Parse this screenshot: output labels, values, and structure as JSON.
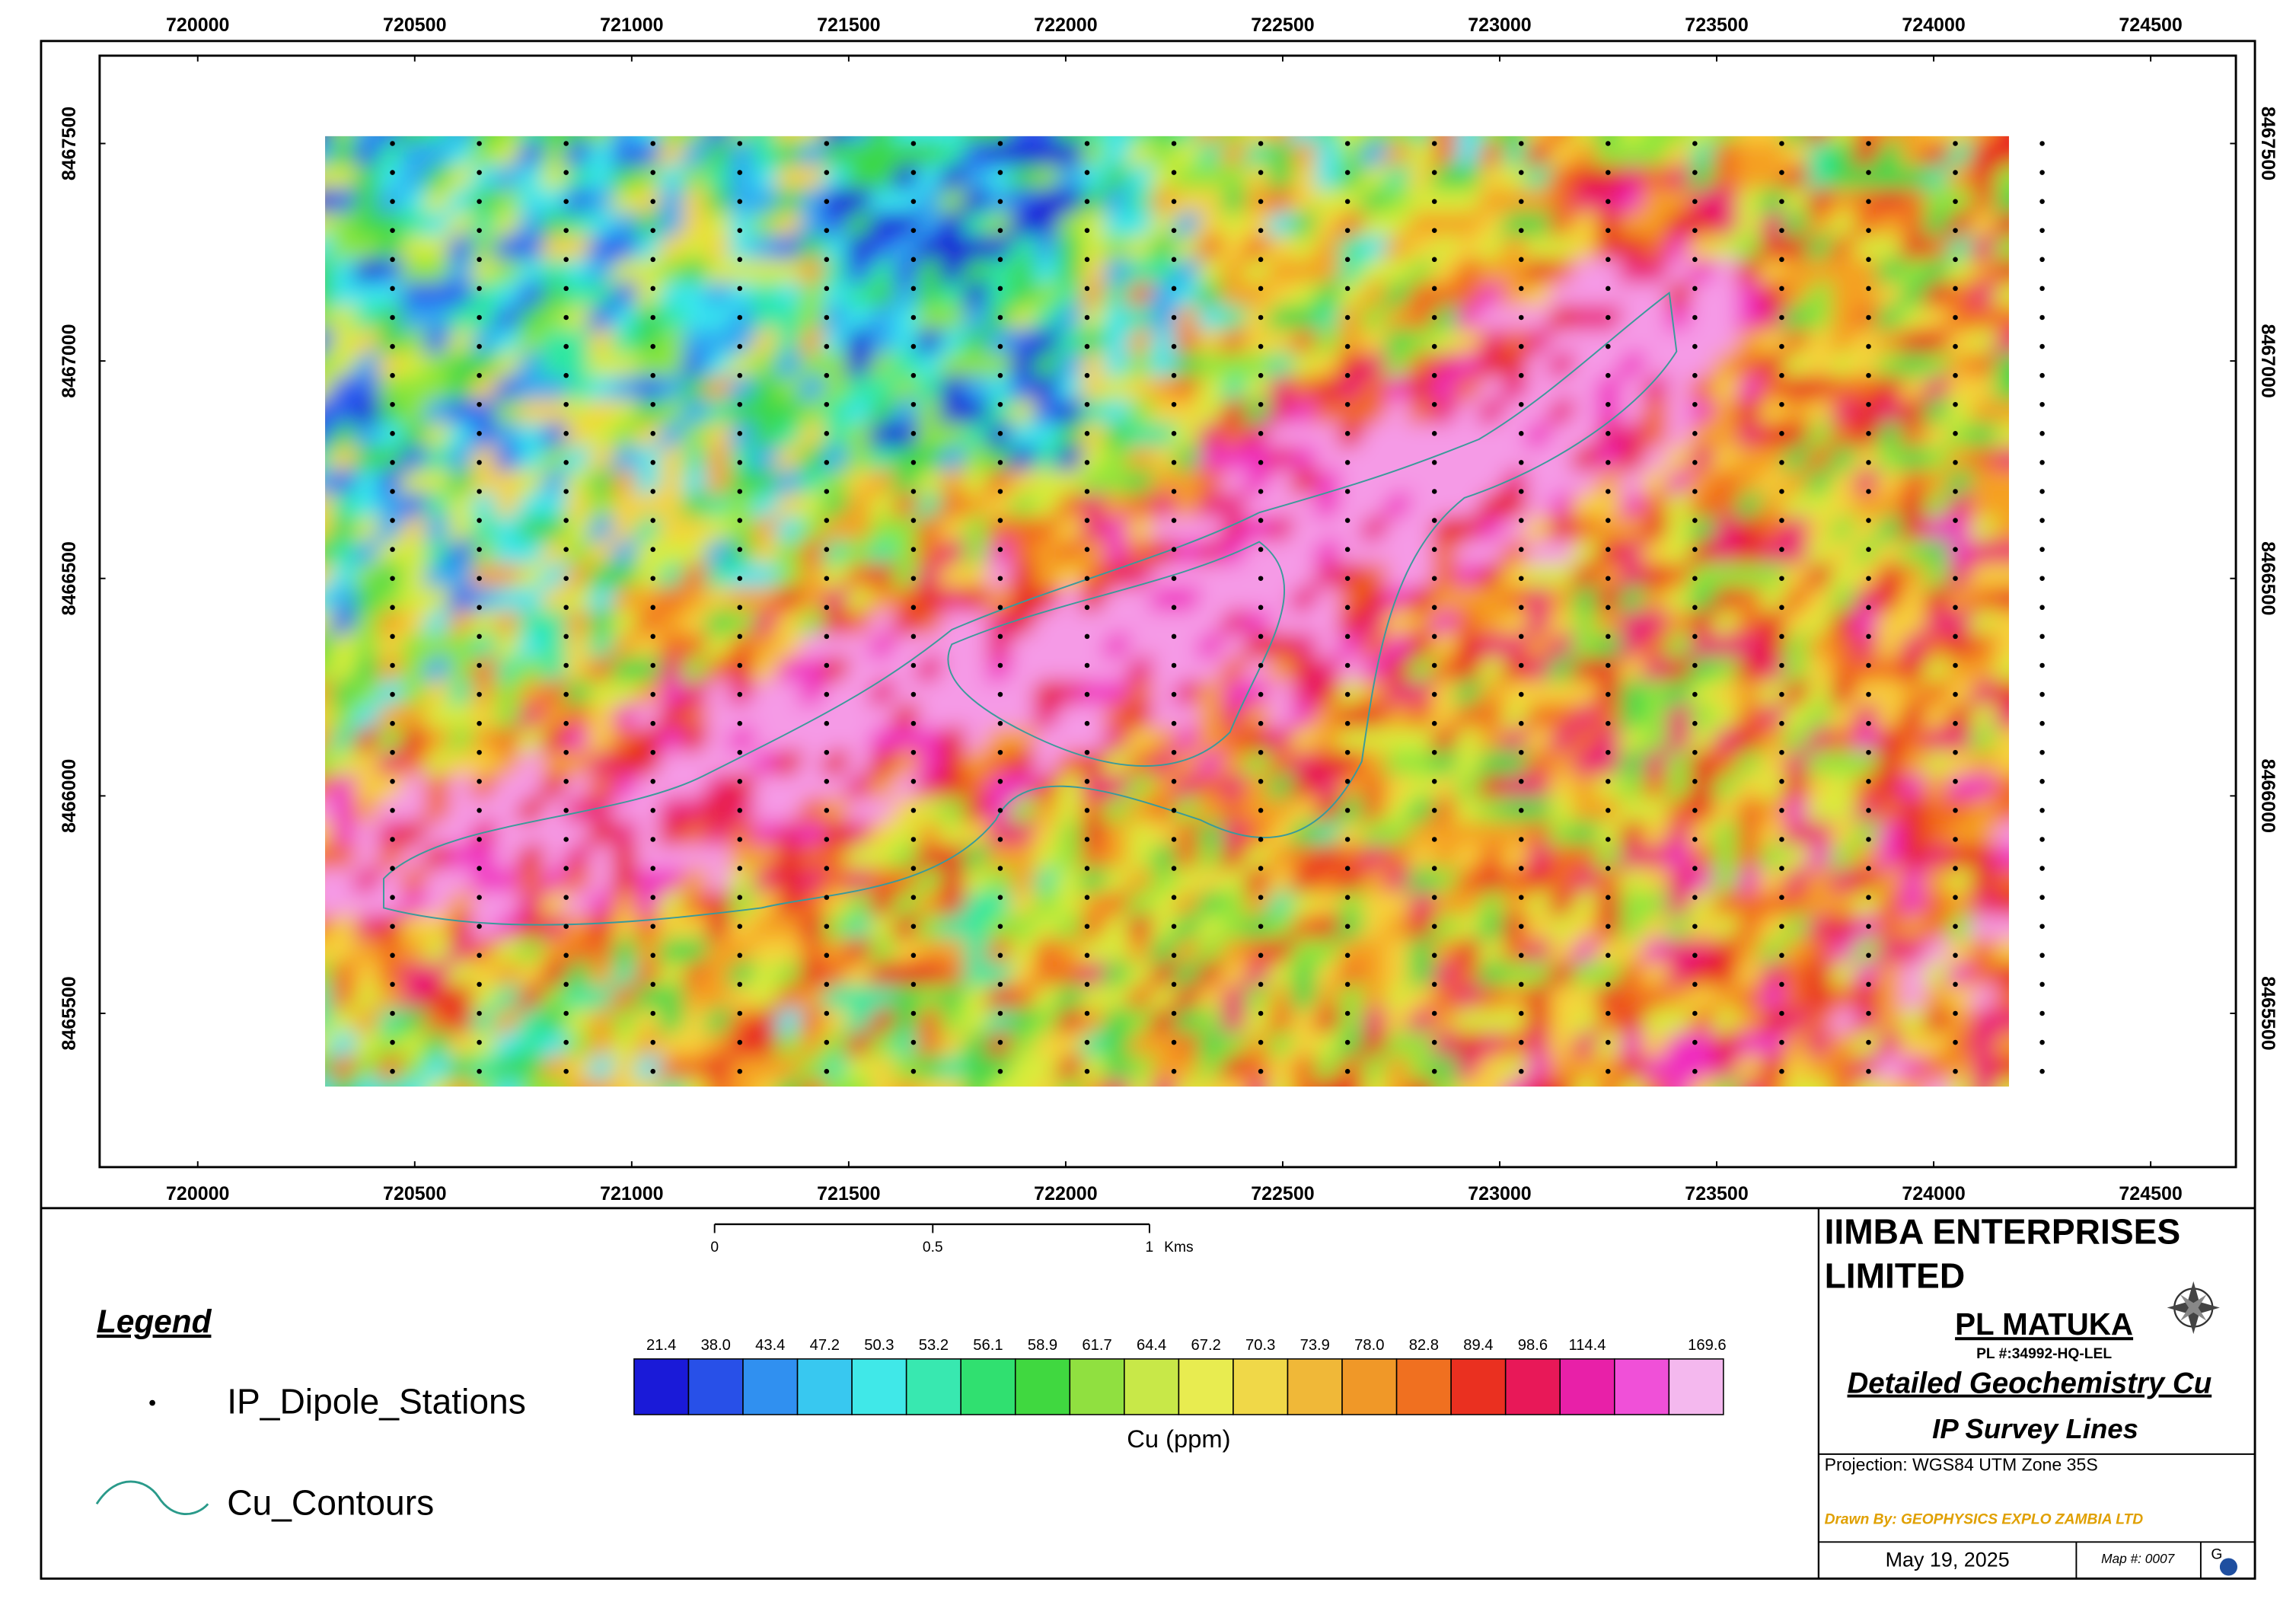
{
  "map": {
    "x_ticks": [
      720000,
      720500,
      721000,
      721500,
      722000,
      722500,
      723000,
      723500,
      724000,
      724500
    ],
    "y_ticks": [
      8465500,
      8466000,
      8466500,
      8467000,
      8467500
    ]
  },
  "scale_bar": {
    "labels": [
      "0",
      "0.5",
      "1"
    ],
    "unit": "Kms"
  },
  "legend": {
    "title": "Legend",
    "items": [
      "IP_Dipole_Stations",
      "Cu_Contours"
    ]
  },
  "color_scale": {
    "title": "Cu (ppm)",
    "labels": [
      "21.4",
      "38.0",
      "43.4",
      "47.2",
      "50.3",
      "53.2",
      "56.1",
      "58.9",
      "61.7",
      "64.4",
      "67.2",
      "70.3",
      "73.9",
      "78.0",
      "82.8",
      "89.4",
      "98.6",
      "114.4",
      "169.6"
    ]
  },
  "title_block": {
    "company_line1": "IIMBA ENTERPRISES",
    "company_line2": "LIMITED",
    "license": "PL MATUKA",
    "license_number": "PL #:34992-HQ-LEL",
    "map_title": "Detailed Geochemistry Cu",
    "map_subtitle": "IP Survey Lines",
    "projection": "Projection: WGS84 UTM Zone 35S",
    "drawn_by": "Drawn By: GEOPHYSICS EXPLO ZAMBIA LTD",
    "date": "May 19, 2025",
    "map_number": "Map #: 0007"
  }
}
